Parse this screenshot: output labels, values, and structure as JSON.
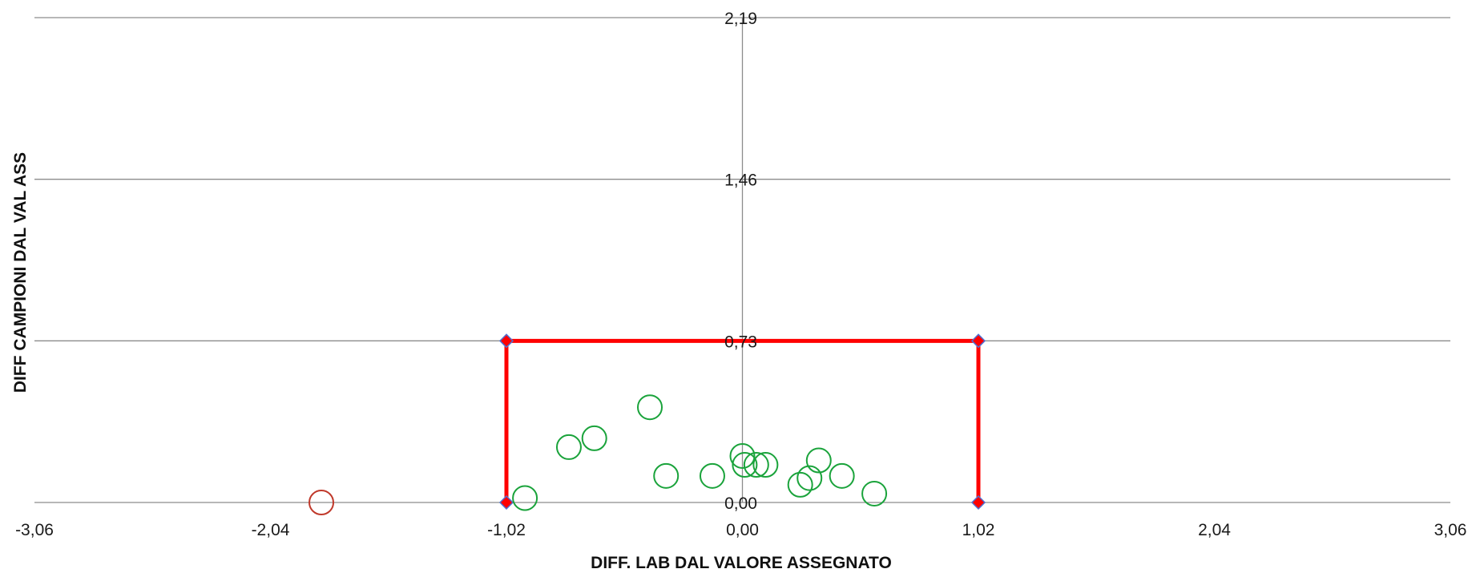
{
  "chart_data": {
    "type": "scatter",
    "title": "",
    "xlabel": "DIFF. LAB DAL VALORE ASSEGNATO",
    "ylabel": "DIFF CAMPIONI DAL VAL ASS",
    "xlim": [
      -3.06,
      3.06
    ],
    "ylim": [
      0.0,
      2.19
    ],
    "x_ticks": [
      "-3,06",
      "-2,04",
      "-1,02",
      "0,00",
      "1,02",
      "2,04",
      "3,06"
    ],
    "x_tick_values": [
      -3.06,
      -2.04,
      -1.02,
      0.0,
      1.02,
      2.04,
      3.06
    ],
    "y_ticks": [
      "0,00",
      "0,73",
      "1,46",
      "2,19"
    ],
    "y_tick_values": [
      0.0,
      0.73,
      1.46,
      2.19
    ],
    "grid": "horizontal",
    "legend": "none",
    "colors": {
      "inside": "#1aa33b",
      "outside": "#c0392b",
      "limit_line": "#ff0000",
      "limit_marker_fill": "#ff0000",
      "limit_marker_edge": "#4f6fd1",
      "grid": "#8c8c8c",
      "axis": "#8c8c8c"
    },
    "limit_box": {
      "points": [
        {
          "x": -1.02,
          "y": 0.0
        },
        {
          "x": -1.02,
          "y": 0.73
        },
        {
          "x": 1.02,
          "y": 0.73
        },
        {
          "x": 1.02,
          "y": 0.0
        }
      ]
    },
    "series": [
      {
        "points": [
          {
            "x": -0.94,
            "y": 0.02
          },
          {
            "x": -0.75,
            "y": 0.25
          },
          {
            "x": -0.64,
            "y": 0.29
          },
          {
            "x": -0.4,
            "y": 0.43
          },
          {
            "x": -0.33,
            "y": 0.12
          },
          {
            "x": -0.13,
            "y": 0.12
          },
          {
            "x": 0.0,
            "y": 0.21
          },
          {
            "x": 0.01,
            "y": 0.17
          },
          {
            "x": 0.06,
            "y": 0.17
          },
          {
            "x": 0.1,
            "y": 0.17
          },
          {
            "x": 0.25,
            "y": 0.08
          },
          {
            "x": 0.29,
            "y": 0.11
          },
          {
            "x": 0.33,
            "y": 0.19
          },
          {
            "x": 0.43,
            "y": 0.12
          },
          {
            "x": 0.57,
            "y": 0.04
          }
        ]
      },
      {
        "points": [
          {
            "x": -1.82,
            "y": 0.0
          }
        ]
      }
    ]
  }
}
